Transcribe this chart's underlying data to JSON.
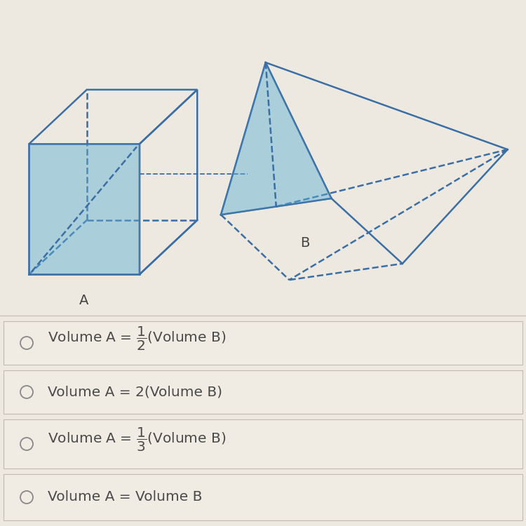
{
  "bg_color": "#ede9e0",
  "line_color": "#3a6ea5",
  "fill_color": "#5bafd6",
  "fill_alpha": 0.45,
  "label_A": "A",
  "label_B": "B",
  "option_box_color": "#f0ece3",
  "option_border_color": "#c0bab0",
  "option_text_color": "#4a4a4a",
  "circle_color": "#888888",
  "divider_color": "#c8c2b8"
}
